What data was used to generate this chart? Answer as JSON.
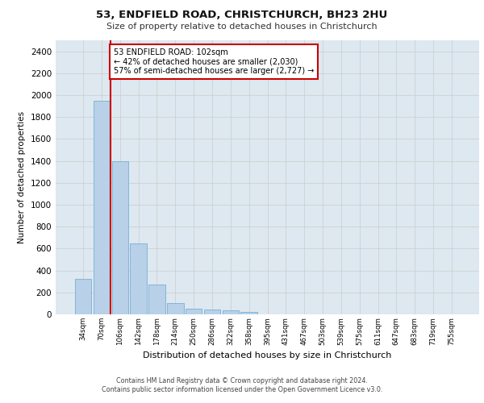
{
  "title": "53, ENDFIELD ROAD, CHRISTCHURCH, BH23 2HU",
  "subtitle": "Size of property relative to detached houses in Christchurch",
  "xlabel": "Distribution of detached houses by size in Christchurch",
  "ylabel": "Number of detached properties",
  "categories": [
    "34sqm",
    "70sqm",
    "106sqm",
    "142sqm",
    "178sqm",
    "214sqm",
    "250sqm",
    "286sqm",
    "322sqm",
    "358sqm",
    "395sqm",
    "431sqm",
    "467sqm",
    "503sqm",
    "539sqm",
    "575sqm",
    "611sqm",
    "647sqm",
    "683sqm",
    "719sqm",
    "755sqm"
  ],
  "values": [
    325,
    1950,
    1400,
    650,
    275,
    100,
    50,
    45,
    35,
    25,
    0,
    0,
    0,
    0,
    0,
    0,
    0,
    0,
    0,
    0,
    0
  ],
  "bar_color": "#b8d0e8",
  "bar_edge_color": "#7aafd4",
  "vline_color": "#cc0000",
  "vline_x": 1.5,
  "annotation_text": "53 ENDFIELD ROAD: 102sqm\n← 42% of detached houses are smaller (2,030)\n57% of semi-detached houses are larger (2,727) →",
  "annotation_box_color": "#ffffff",
  "annotation_box_edge_color": "#cc0000",
  "ylim": [
    0,
    2500
  ],
  "yticks": [
    0,
    200,
    400,
    600,
    800,
    1000,
    1200,
    1400,
    1600,
    1800,
    2000,
    2200,
    2400
  ],
  "grid_color": "#cccccc",
  "bg_color": "#dde8f0",
  "footer_line1": "Contains HM Land Registry data © Crown copyright and database right 2024.",
  "footer_line2": "Contains public sector information licensed under the Open Government Licence v3.0."
}
